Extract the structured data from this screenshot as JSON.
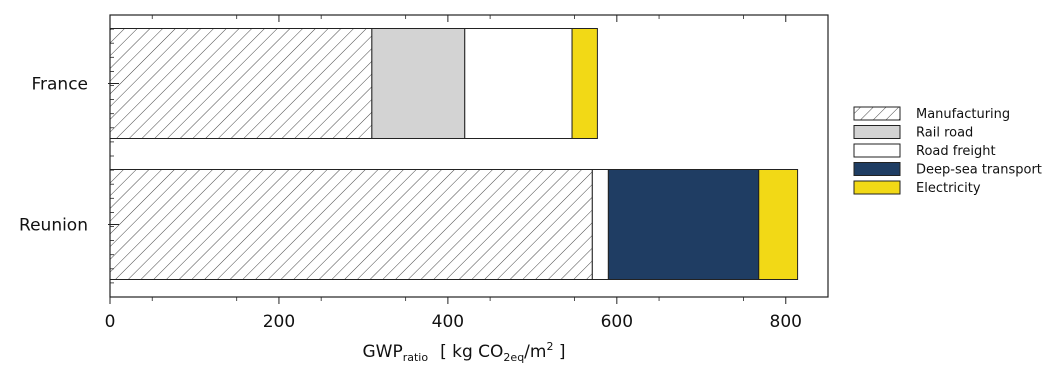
{
  "chart_data": {
    "type": "bar",
    "orientation": "horizontal",
    "stacked": true,
    "categories": [
      "France",
      "Reunion"
    ],
    "series": [
      {
        "name": "Manufacturing",
        "values": [
          310,
          571
        ],
        "color": "#ffffff",
        "pattern": "hatch"
      },
      {
        "name": "Rail road",
        "values": [
          110,
          0
        ],
        "color": "#d3d3d3"
      },
      {
        "name": "Road freight",
        "values": [
          127,
          19
        ],
        "color": "#ffffff"
      },
      {
        "name": "Deep-sea transport",
        "values": [
          0,
          178
        ],
        "color": "#1f3d63"
      },
      {
        "name": "Electricity",
        "values": [
          30,
          46
        ],
        "color": "#f2d916"
      }
    ],
    "xlim": [
      0,
      850
    ],
    "xticks": [
      "0",
      "200",
      "400",
      "600",
      "800"
    ],
    "xlabel": {
      "main": "GWP",
      "sub": "ratio",
      "unit_open": "[ kg CO",
      "unit_sub1": "2",
      "unit_sub2": "eq",
      "unit_mid": "/m",
      "unit_sup": "2",
      "unit_close": " ]"
    },
    "title": "",
    "legend_position": "right",
    "grid": false
  }
}
